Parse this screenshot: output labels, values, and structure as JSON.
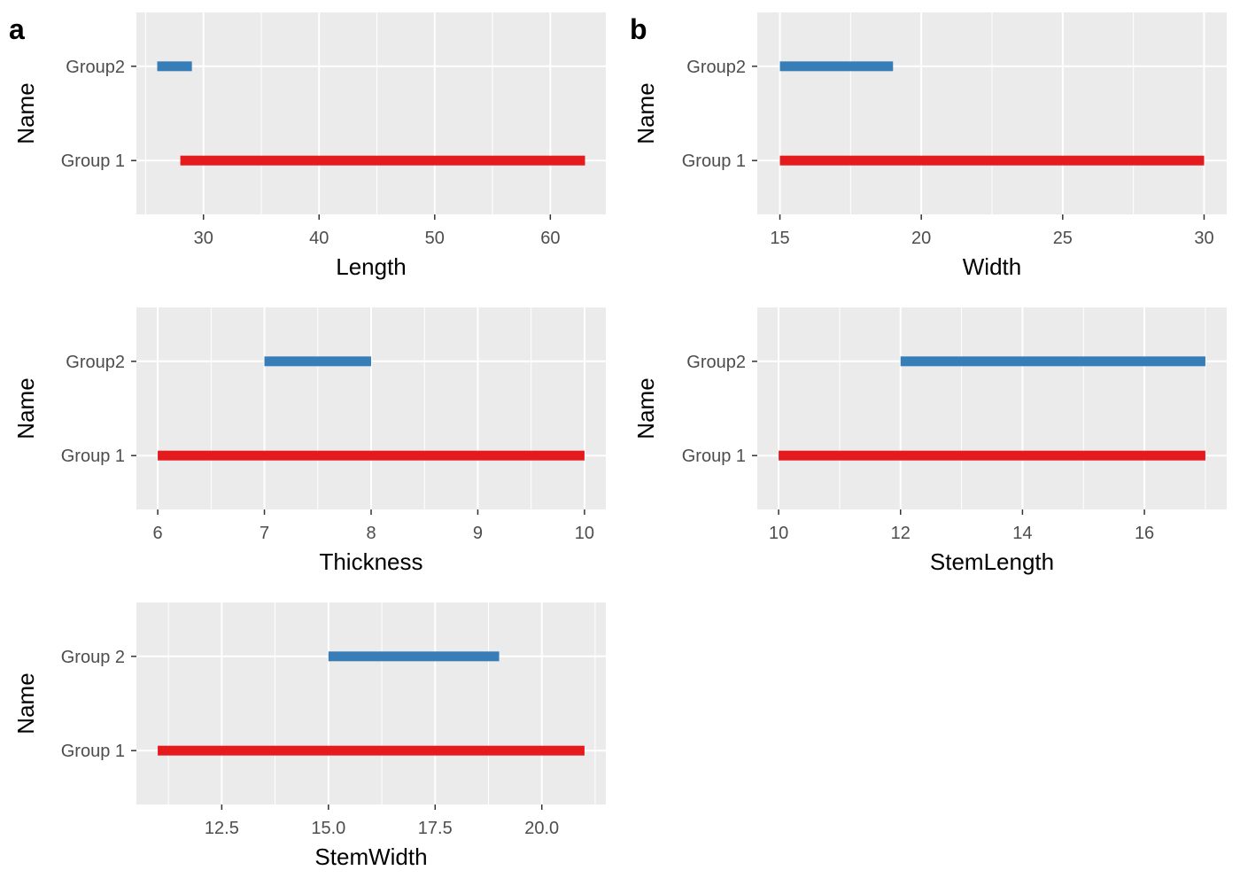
{
  "panel_tags": [
    "a",
    "b"
  ],
  "colors": {
    "panel_bg": "#EBEBEB",
    "grid": "#FFFFFF",
    "series": [
      "#E41A1C",
      "#377EB8"
    ]
  },
  "chart_data": [
    {
      "type": "range-bar",
      "tag": "a",
      "xlabel": "Length",
      "ylabel": "Name",
      "categories": [
        "Group 1",
        "Group2"
      ],
      "xlim": [
        24.2,
        64.8
      ],
      "xticks": [
        30,
        40,
        50,
        60
      ],
      "xtick_labels": [
        "30",
        "40",
        "50",
        "60"
      ],
      "ranges": [
        [
          28,
          63
        ],
        [
          26,
          29
        ]
      ],
      "grid": true
    },
    {
      "type": "range-bar",
      "tag": "b",
      "xlabel": "Width",
      "ylabel": "Name",
      "categories": [
        "Group 1",
        "Group2"
      ],
      "xlim": [
        14.2,
        30.8
      ],
      "xticks": [
        15,
        20,
        25,
        30
      ],
      "xtick_labels": [
        "15",
        "20",
        "25",
        "30"
      ],
      "ranges": [
        [
          15,
          30
        ],
        [
          15,
          19
        ]
      ],
      "grid": true
    },
    {
      "type": "range-bar",
      "tag": "",
      "xlabel": "Thickness",
      "ylabel": "Name",
      "categories": [
        "Group 1",
        "Group2"
      ],
      "xlim": [
        5.8,
        10.2
      ],
      "xticks": [
        6,
        7,
        8,
        9,
        10
      ],
      "xtick_labels": [
        "6",
        "7",
        "8",
        "9",
        "10"
      ],
      "ranges": [
        [
          6,
          10
        ],
        [
          7,
          8
        ]
      ],
      "grid": true
    },
    {
      "type": "range-bar",
      "tag": "",
      "xlabel": "StemLength",
      "ylabel": "Name",
      "categories": [
        "Group 1",
        "Group2"
      ],
      "xlim": [
        9.65,
        17.35
      ],
      "xticks": [
        10,
        12,
        14,
        16
      ],
      "xtick_labels": [
        "10",
        "12",
        "14",
        "16"
      ],
      "ranges": [
        [
          10,
          17
        ],
        [
          12,
          17
        ]
      ],
      "grid": true
    },
    {
      "type": "range-bar",
      "tag": "",
      "xlabel": "StemWidth",
      "ylabel": "Name",
      "categories": [
        "Group 1",
        "Group 2"
      ],
      "xlim": [
        10.5,
        21.5
      ],
      "xticks": [
        12.5,
        15,
        17.5,
        20
      ],
      "xtick_labels": [
        "12.5",
        "15.0",
        "17.5",
        "20.0"
      ],
      "ranges": [
        [
          11,
          21
        ],
        [
          15,
          19
        ]
      ],
      "grid": true
    }
  ]
}
